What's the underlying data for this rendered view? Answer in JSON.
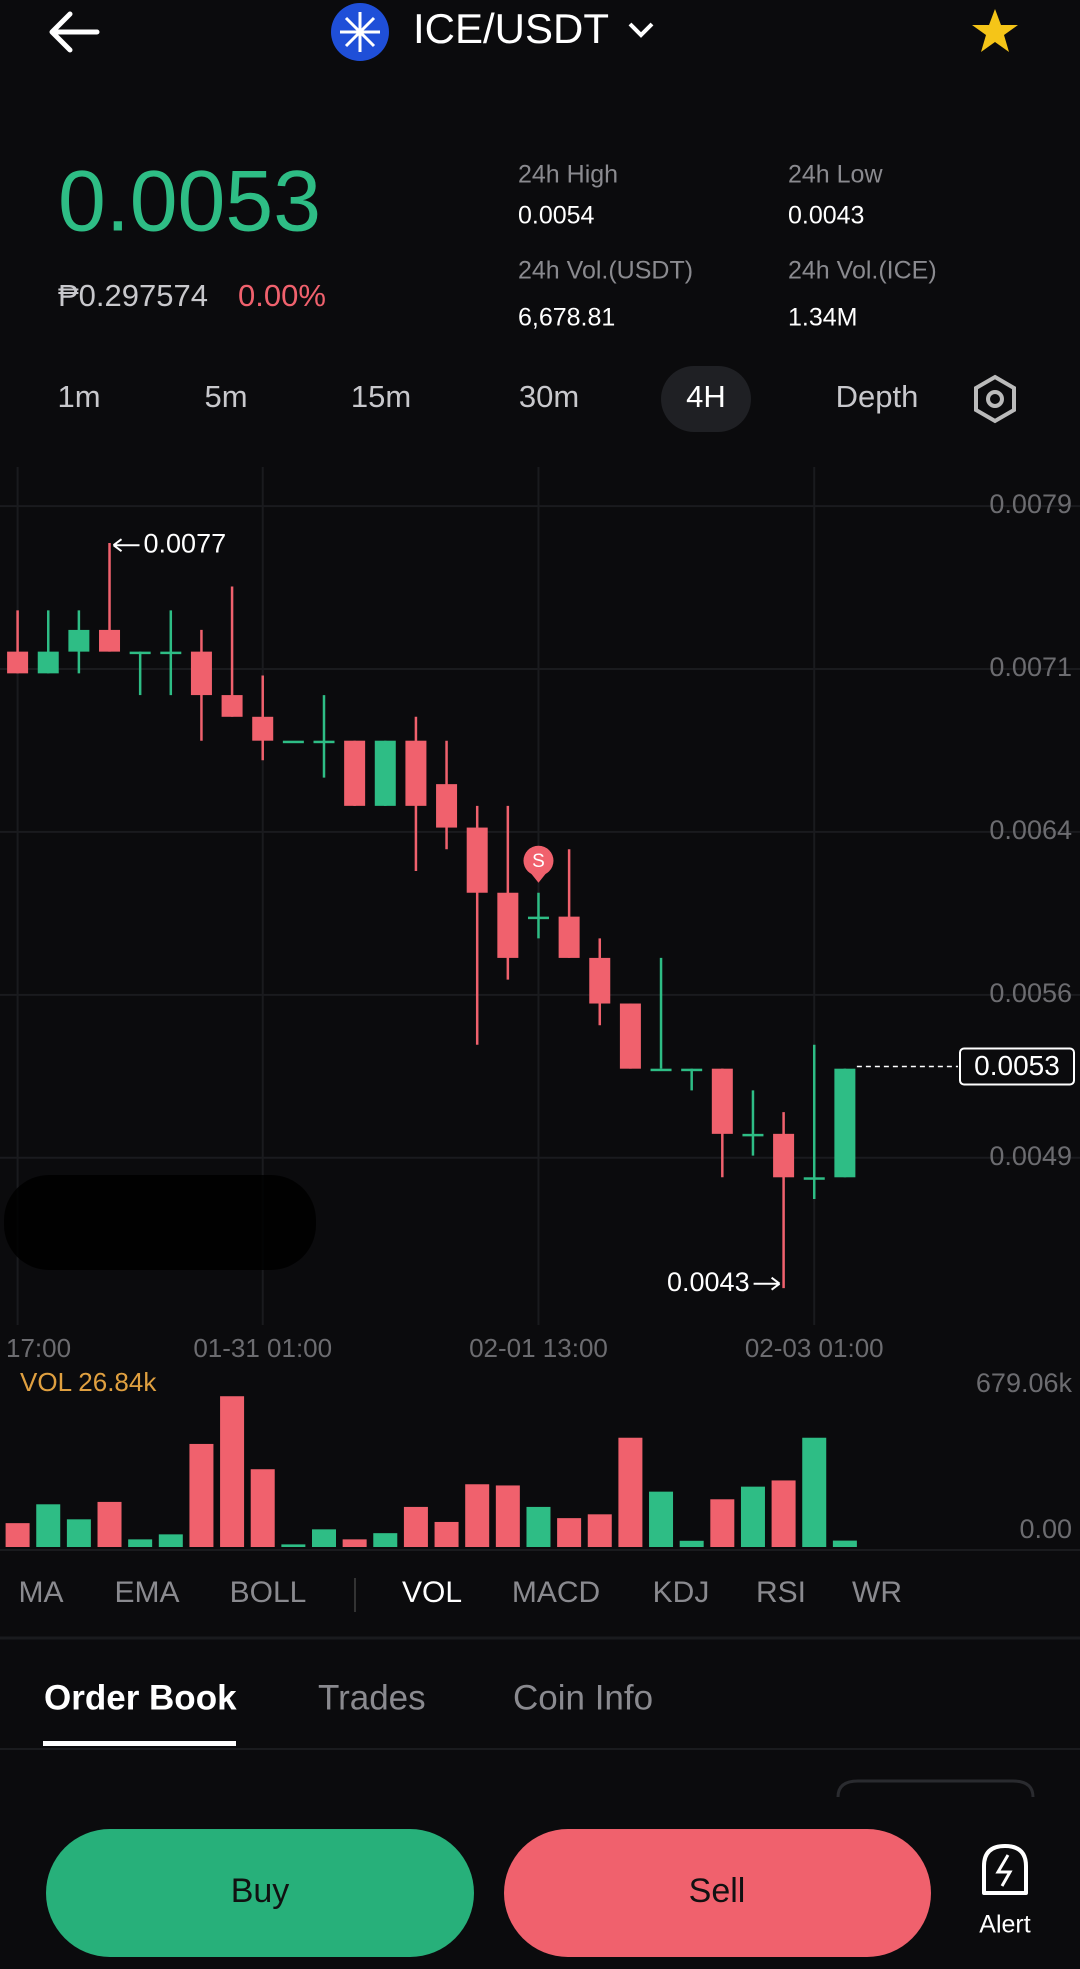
{
  "header": {
    "pair": "ICE/USDT"
  },
  "price": {
    "last": "0.0053",
    "fiat": "₱0.297574",
    "change": "0.00%"
  },
  "stats": [
    {
      "label": "24h High",
      "value": "0.0054"
    },
    {
      "label": "24h Low",
      "value": "0.0043"
    },
    {
      "label": "24h Vol.(USDT)",
      "value": "6,678.81"
    },
    {
      "label": "24h Vol.(ICE)",
      "value": "1.34M"
    }
  ],
  "timeframes": [
    "1m",
    "5m",
    "15m",
    "30m",
    "4H",
    "Depth"
  ],
  "chart_data": [
    {
      "type": "candlestick",
      "categories": [
        "17:00",
        null,
        null,
        null,
        null,
        null,
        null,
        null,
        "01-31 01:00",
        null,
        null,
        null,
        null,
        null,
        null,
        null,
        null,
        "02-01 13:00",
        null,
        null,
        null,
        null,
        null,
        null,
        null,
        null,
        "02-03 01:00",
        null
      ],
      "open": [
        0.00721,
        0.00711,
        0.00721,
        0.00731,
        0.00721,
        0.00721,
        0.00721,
        0.00701,
        0.00691,
        0.0068,
        0.0068,
        0.0068,
        0.0065,
        0.0068,
        0.0066,
        0.0064,
        0.0061,
        0.00599,
        0.00599,
        0.0058,
        0.00559,
        0.00529,
        0.00529,
        0.00529,
        0.00499,
        0.00499,
        0.00479,
        0.00479
      ],
      "high": [
        0.0074,
        0.0074,
        0.0074,
        0.00771,
        0.00721,
        0.0074,
        0.00731,
        0.00751,
        0.0071,
        0.0068,
        0.00701,
        0.0068,
        0.0068,
        0.00691,
        0.0068,
        0.0065,
        0.0065,
        0.0061,
        0.0063,
        0.00589,
        0.00559,
        0.0058,
        0.00529,
        0.00529,
        0.00519,
        0.00509,
        0.0054,
        0.00529
      ],
      "low": [
        0.00711,
        0.00711,
        0.00711,
        0.00721,
        0.00701,
        0.00701,
        0.0068,
        0.00691,
        0.00671,
        0.0068,
        0.00663,
        0.0065,
        0.0065,
        0.0062,
        0.0063,
        0.0054,
        0.0057,
        0.00589,
        0.0058,
        0.00549,
        0.00529,
        0.00529,
        0.00519,
        0.00479,
        0.00489,
        0.00428,
        0.00469,
        0.00479
      ],
      "close": [
        0.00711,
        0.00721,
        0.00731,
        0.00721,
        0.00721,
        0.00721,
        0.00701,
        0.00691,
        0.0068,
        0.0068,
        0.0068,
        0.0065,
        0.0068,
        0.0065,
        0.0064,
        0.0061,
        0.0058,
        0.00599,
        0.0058,
        0.00559,
        0.00529,
        0.00529,
        0.00529,
        0.00499,
        0.00499,
        0.00479,
        0.00479,
        0.00529
      ],
      "signals": [
        null,
        null,
        null,
        null,
        null,
        null,
        null,
        null,
        null,
        null,
        null,
        null,
        null,
        null,
        null,
        null,
        null,
        "S",
        null,
        null,
        null,
        null,
        null,
        null,
        null,
        null,
        null,
        null
      ],
      "up_color": "#2ebd85",
      "down_color": "#f0616d",
      "ylim": [
        0.00411,
        0.00806
      ],
      "yticks": [
        {
          "value": 0.00788,
          "label": "0.0079"
        },
        {
          "value": 0.00713,
          "label": "0.0071"
        },
        {
          "value": 0.00638,
          "label": "0.0064"
        },
        {
          "value": 0.00563,
          "label": "0.0056"
        },
        {
          "value": 0.00488,
          "label": "0.0049"
        }
      ],
      "grid": true,
      "last_price": 0.0053,
      "max_marker": 0.0077,
      "min_marker": 0.0043
    },
    {
      "type": "bar",
      "title": "VOL 26.84k",
      "values": [
        100,
        179,
        116,
        189,
        32,
        53,
        432,
        632,
        326,
        11,
        74,
        32,
        58,
        168,
        105,
        263,
        258,
        168,
        121,
        137,
        458,
        232,
        26,
        200,
        253,
        279,
        458,
        26.84
      ],
      "ylim": [
        0,
        679.06
      ],
      "yticks": [
        {
          "value": 679.06,
          "label": "679.06k"
        },
        {
          "value": 0,
          "label": "0.00"
        }
      ]
    }
  ],
  "indicators": [
    "MA",
    "EMA",
    "BOLL",
    "VOL",
    "MACD",
    "KDJ",
    "RSI",
    "WR"
  ],
  "tabs": [
    "Order Book",
    "Trades",
    "Coin Info"
  ],
  "actions": {
    "buy": "Buy",
    "sell": "Sell",
    "alert": "Alert"
  }
}
